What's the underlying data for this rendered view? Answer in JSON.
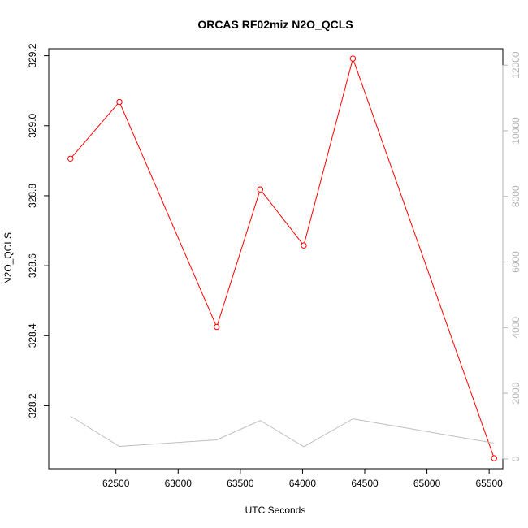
{
  "chart_data": {
    "type": "line",
    "title": "ORCAS RF02miz N2O_QCLS",
    "xlabel": "UTC Seconds",
    "ylabel": "N2O_QCLS",
    "xlim": [
      61960,
      65610
    ],
    "ylim": [
      328.02,
      329.22
    ],
    "y2lim": [
      -300,
      12500
    ],
    "x_ticks": [
      62500,
      63000,
      63500,
      64000,
      64500,
      65000,
      65500
    ],
    "y_ticks": [
      328.2,
      328.4,
      328.6,
      328.8,
      329.0,
      329.2
    ],
    "y2_ticks": [
      0,
      2000,
      4000,
      6000,
      8000,
      10000,
      12000
    ],
    "grid": false,
    "series": [
      {
        "axis": "left",
        "color": "#ff0000",
        "markers": true,
        "x": [
          62135,
          62528,
          63310,
          63660,
          64010,
          64405,
          65540
        ],
        "y": [
          328.906,
          329.068,
          328.425,
          328.818,
          328.658,
          329.192,
          328.05
        ]
      },
      {
        "axis": "right",
        "color": "#bebebe",
        "markers": false,
        "x": [
          62135,
          62528,
          63310,
          63660,
          64010,
          64405,
          65540
        ],
        "y": [
          1300,
          380,
          580,
          1170,
          370,
          1220,
          480
        ]
      }
    ]
  },
  "colors": {
    "primary_series": "#ff0000",
    "secondary_series": "#bebebe",
    "secondary_axis": "#b3b3b3"
  }
}
